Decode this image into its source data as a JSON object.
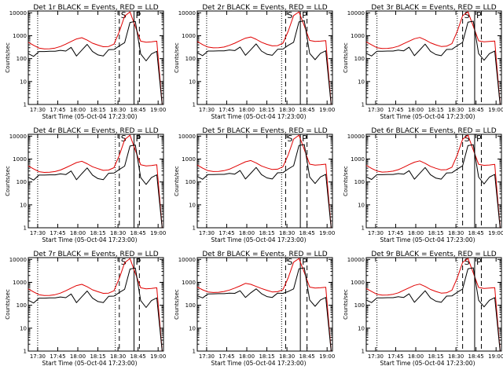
{
  "figure": {
    "x_tick_labels": [
      "17:30",
      "17:45",
      "18:00",
      "18:15",
      "18:30",
      "18:45",
      "19:00"
    ],
    "y_tick_labels": [
      "1",
      "10",
      "100",
      "1000",
      "10000"
    ],
    "xlabel": "Start Time (05-Oct-04 17:23:00)",
    "ylabel": "Counts/sec",
    "flag_labels": [
      "S",
      "P"
    ],
    "colors": {
      "events": "#000000",
      "lld": "#e00000",
      "axes": "#000000"
    }
  },
  "chart_data": [
    {
      "type": "line",
      "title": "Det 1r  BLACK = Events, RED = LLD",
      "xlabel": "Start Time (05-Oct-04 17:23:00)",
      "ylabel": "Counts/sec",
      "x_unit": "minutes after 17:23:00",
      "xlim": [
        0,
        101
      ],
      "ylim": [
        1,
        12000
      ],
      "y_scale": "log",
      "x": [
        0,
        4,
        8,
        12,
        16,
        20,
        24,
        28,
        32,
        36,
        40,
        44,
        48,
        52,
        56,
        60,
        64,
        68,
        72,
        76,
        80,
        84,
        88,
        92,
        96,
        100
      ],
      "series": [
        {
          "name": "LLD",
          "values": [
            520,
            380,
            290,
            265,
            270,
            290,
            340,
            430,
            560,
            720,
            820,
            640,
            470,
            390,
            330,
            340,
            430,
            1500,
            7200,
            11000,
            2500,
            580,
            520,
            540,
            580,
            0
          ],
          "style": "solid-red"
        },
        {
          "name": "Events",
          "values": [
            165,
            125,
            205,
            205,
            210,
            210,
            230,
            215,
            310,
            130,
            235,
            420,
            205,
            145,
            130,
            245,
            250,
            360,
            500,
            3800,
            4200,
            160,
            80,
            160,
            210,
            0
          ],
          "style": "solid-black"
        }
      ],
      "vertical_lines": {
        "dotted": [
          7,
          65
        ],
        "dashed": [
          68,
          83
        ],
        "solid": [
          79
        ]
      }
    },
    {
      "type": "line",
      "title": "Det 2r  BLACK = Events, RED = LLD",
      "xlabel": "Start Time (05-Oct-04 17:23:00)",
      "ylabel": "Counts/sec",
      "x_unit": "minutes after 17:23:00",
      "xlim": [
        0,
        101
      ],
      "ylim": [
        1,
        12000
      ],
      "y_scale": "log",
      "x": [
        0,
        4,
        8,
        12,
        16,
        20,
        24,
        28,
        32,
        36,
        40,
        44,
        48,
        52,
        56,
        60,
        64,
        68,
        72,
        76,
        80,
        84,
        88,
        92,
        96,
        100
      ],
      "series": [
        {
          "name": "LLD",
          "values": [
            560,
            410,
            320,
            295,
            300,
            320,
            380,
            470,
            610,
            780,
            880,
            700,
            520,
            420,
            360,
            370,
            470,
            1600,
            7600,
            11000,
            2700,
            620,
            560,
            580,
            610,
            0
          ],
          "style": "solid-red"
        },
        {
          "name": "Events",
          "values": [
            180,
            135,
            215,
            215,
            220,
            220,
            240,
            225,
            320,
            140,
            245,
            440,
            215,
            155,
            140,
            255,
            260,
            380,
            520,
            4000,
            4500,
            170,
            90,
            170,
            220,
            0
          ],
          "style": "solid-black"
        }
      ],
      "vertical_lines": {
        "dotted": [
          7,
          63
        ],
        "dashed": [
          66,
          82
        ],
        "solid": [
          77
        ]
      }
    },
    {
      "type": "line",
      "title": "Det 3r  BLACK = Events, RED = LLD",
      "xlabel": "Start Time (05-Oct-04 17:23:00)",
      "ylabel": "Counts/sec",
      "x_unit": "minutes after 17:23:00",
      "xlim": [
        0,
        101
      ],
      "ylim": [
        1,
        12000
      ],
      "y_scale": "log",
      "x": [
        0,
        4,
        8,
        12,
        16,
        20,
        24,
        28,
        32,
        36,
        40,
        44,
        48,
        52,
        56,
        60,
        64,
        68,
        72,
        76,
        80,
        84,
        88,
        92,
        96,
        100
      ],
      "series": [
        {
          "name": "LLD",
          "values": [
            540,
            400,
            300,
            275,
            280,
            300,
            350,
            450,
            580,
            740,
            840,
            660,
            490,
            400,
            340,
            350,
            450,
            1550,
            7400,
            11000,
            2600,
            600,
            540,
            560,
            590,
            0
          ],
          "style": "solid-red"
        },
        {
          "name": "Events",
          "values": [
            170,
            130,
            210,
            210,
            215,
            215,
            235,
            220,
            315,
            135,
            240,
            430,
            210,
            150,
            135,
            250,
            255,
            370,
            510,
            3900,
            4300,
            165,
            85,
            165,
            215,
            0
          ],
          "style": "solid-black"
        }
      ],
      "vertical_lines": {
        "dotted": [
          8,
          68
        ],
        "dashed": [
          72,
          86
        ],
        "solid": [
          81
        ]
      }
    },
    {
      "type": "line",
      "title": "Det 4r  BLACK = Events, RED = LLD",
      "xlabel": "Start Time (05-Oct-04 17:23:00)",
      "ylabel": "Counts/sec",
      "x_unit": "minutes after 17:23:00",
      "xlim": [
        0,
        101
      ],
      "ylim": [
        1,
        12000
      ],
      "y_scale": "log",
      "x": [
        0,
        4,
        8,
        12,
        16,
        20,
        24,
        28,
        32,
        36,
        40,
        44,
        48,
        52,
        56,
        60,
        64,
        68,
        72,
        76,
        80,
        84,
        88,
        92,
        96,
        100
      ],
      "series": [
        {
          "name": "LLD",
          "values": [
            500,
            370,
            280,
            260,
            265,
            285,
            330,
            420,
            540,
            700,
            800,
            620,
            460,
            380,
            320,
            330,
            420,
            1450,
            7000,
            11000,
            2400,
            560,
            500,
            520,
            560,
            0
          ],
          "style": "solid-red"
        },
        {
          "name": "Events",
          "values": [
            160,
            120,
            200,
            200,
            205,
            205,
            225,
            210,
            300,
            125,
            230,
            410,
            200,
            140,
            125,
            240,
            245,
            350,
            490,
            3700,
            4100,
            155,
            78,
            155,
            205,
            0
          ],
          "style": "solid-black"
        }
      ],
      "vertical_lines": {
        "dotted": [
          7,
          65
        ],
        "dashed": [
          68,
          83
        ],
        "solid": [
          79
        ]
      }
    },
    {
      "type": "line",
      "title": "Det 5r  BLACK = Events, RED = LLD",
      "xlabel": "Start Time (05-Oct-04 17:23:00)",
      "ylabel": "Counts/sec",
      "x_unit": "minutes after 17:23:00",
      "xlim": [
        0,
        101
      ],
      "ylim": [
        1,
        12000
      ],
      "y_scale": "log",
      "x": [
        0,
        4,
        8,
        12,
        16,
        20,
        24,
        28,
        32,
        36,
        40,
        44,
        48,
        52,
        56,
        60,
        64,
        68,
        72,
        76,
        80,
        84,
        88,
        92,
        96,
        100
      ],
      "series": [
        {
          "name": "LLD",
          "values": [
            550,
            400,
            310,
            285,
            290,
            310,
            360,
            460,
            590,
            760,
            860,
            680,
            500,
            410,
            350,
            360,
            460,
            1550,
            7400,
            11000,
            2600,
            600,
            540,
            560,
            600,
            0
          ],
          "style": "solid-red"
        },
        {
          "name": "Events",
          "values": [
            175,
            130,
            210,
            210,
            215,
            215,
            235,
            220,
            315,
            135,
            240,
            430,
            210,
            150,
            135,
            250,
            255,
            370,
            510,
            3900,
            4300,
            165,
            85,
            165,
            215,
            0
          ],
          "style": "solid-black"
        }
      ],
      "vertical_lines": {
        "dotted": [
          7,
          63
        ],
        "dashed": [
          66,
          82
        ],
        "solid": [
          77
        ]
      }
    },
    {
      "type": "line",
      "title": "Det 6r  BLACK = Events, RED = LLD",
      "xlabel": "Start Time (05-Oct-04 17:23:00)",
      "ylabel": "Counts/sec",
      "x_unit": "minutes after 17:23:00",
      "xlim": [
        0,
        101
      ],
      "ylim": [
        1,
        12000
      ],
      "y_scale": "log",
      "x": [
        0,
        4,
        8,
        12,
        16,
        20,
        24,
        28,
        32,
        36,
        40,
        44,
        48,
        52,
        56,
        60,
        64,
        68,
        72,
        76,
        80,
        84,
        88,
        92,
        96,
        100
      ],
      "series": [
        {
          "name": "LLD",
          "values": [
            530,
            390,
            300,
            270,
            275,
            295,
            345,
            440,
            570,
            730,
            830,
            650,
            480,
            395,
            335,
            345,
            440,
            1500,
            7300,
            11000,
            2500,
            590,
            530,
            550,
            585,
            0
          ],
          "style": "solid-red"
        },
        {
          "name": "Events",
          "values": [
            168,
            128,
            207,
            207,
            212,
            212,
            232,
            217,
            310,
            132,
            237,
            425,
            207,
            147,
            132,
            247,
            252,
            365,
            505,
            3850,
            4250,
            162,
            82,
            162,
            212,
            0
          ],
          "style": "solid-black"
        }
      ],
      "vertical_lines": {
        "dotted": [
          8,
          68
        ],
        "dashed": [
          72,
          86
        ],
        "solid": [
          81
        ]
      }
    },
    {
      "type": "line",
      "title": "Det 7r  BLACK = Events, RED = LLD",
      "xlabel": "Start Time (05-Oct-04 17:23:00)",
      "ylabel": "Counts/sec",
      "x_unit": "minutes after 17:23:00",
      "xlim": [
        0,
        101
      ],
      "ylim": [
        1,
        12000
      ],
      "y_scale": "log",
      "x": [
        0,
        4,
        8,
        12,
        16,
        20,
        24,
        28,
        32,
        36,
        40,
        44,
        48,
        52,
        56,
        60,
        64,
        68,
        72,
        76,
        80,
        84,
        88,
        92,
        96,
        100
      ],
      "series": [
        {
          "name": "LLD",
          "values": [
            520,
            380,
            290,
            265,
            270,
            290,
            340,
            430,
            560,
            720,
            820,
            640,
            470,
            390,
            330,
            340,
            430,
            1500,
            7200,
            11000,
            2500,
            580,
            520,
            540,
            580,
            0
          ],
          "style": "solid-red"
        },
        {
          "name": "Events",
          "values": [
            165,
            125,
            205,
            205,
            210,
            210,
            230,
            215,
            310,
            130,
            235,
            420,
            205,
            145,
            130,
            245,
            250,
            360,
            500,
            3800,
            4200,
            160,
            80,
            160,
            210,
            0
          ],
          "style": "solid-black"
        }
      ],
      "vertical_lines": {
        "dotted": [
          7,
          65
        ],
        "dashed": [
          68,
          83
        ],
        "solid": [
          79
        ]
      }
    },
    {
      "type": "line",
      "title": "Det 8r  BLACK = Events, RED = LLD",
      "xlabel": "Start Time (05-Oct-04 17:23:00)",
      "ylabel": "Counts/sec",
      "x_unit": "minutes after 17:23:00",
      "xlim": [
        0,
        101
      ],
      "ylim": [
        1,
        12000
      ],
      "y_scale": "log",
      "x": [
        0,
        4,
        8,
        12,
        16,
        20,
        24,
        28,
        32,
        36,
        40,
        44,
        48,
        52,
        56,
        60,
        64,
        68,
        72,
        76,
        80,
        84,
        88,
        92,
        96,
        100
      ],
      "series": [
        {
          "name": "LLD",
          "values": [
            620,
            470,
            380,
            360,
            370,
            400,
            460,
            560,
            700,
            900,
            820,
            660,
            540,
            450,
            380,
            390,
            480,
            1600,
            7600,
            11000,
            2700,
            620,
            560,
            580,
            610,
            0
          ],
          "style": "solid-red"
        },
        {
          "name": "Events",
          "values": [
            260,
            210,
            310,
            315,
            320,
            320,
            340,
            330,
            430,
            220,
            350,
            520,
            320,
            240,
            220,
            340,
            330,
            400,
            520,
            3900,
            4300,
            170,
            90,
            170,
            220,
            0
          ],
          "style": "solid-black"
        }
      ],
      "vertical_lines": {
        "dotted": [
          7,
          63
        ],
        "dashed": [
          66,
          82
        ],
        "solid": [
          77
        ]
      }
    },
    {
      "type": "line",
      "title": "Det 9r  BLACK = Events, RED = LLD",
      "xlabel": "Start Time (05-Oct-04 17:23:00)",
      "ylabel": "Counts/sec",
      "x_unit": "minutes after 17:23:00",
      "xlim": [
        0,
        101
      ],
      "ylim": [
        1,
        12000
      ],
      "y_scale": "log",
      "x": [
        0,
        4,
        8,
        12,
        16,
        20,
        24,
        28,
        32,
        36,
        40,
        44,
        48,
        52,
        56,
        60,
        64,
        68,
        72,
        76,
        80,
        84,
        88,
        92,
        96,
        100
      ],
      "series": [
        {
          "name": "LLD",
          "values": [
            540,
            400,
            300,
            275,
            280,
            300,
            350,
            450,
            580,
            740,
            840,
            660,
            490,
            400,
            340,
            350,
            450,
            1550,
            7400,
            11000,
            2600,
            600,
            540,
            560,
            590,
            0
          ],
          "style": "solid-red"
        },
        {
          "name": "Events",
          "values": [
            170,
            130,
            210,
            210,
            215,
            215,
            235,
            220,
            315,
            135,
            240,
            430,
            210,
            150,
            135,
            250,
            255,
            370,
            510,
            3900,
            4300,
            165,
            85,
            165,
            215,
            0
          ],
          "style": "solid-black"
        }
      ],
      "vertical_lines": {
        "dotted": [
          8,
          68
        ],
        "dashed": [
          72,
          86
        ],
        "solid": [
          81
        ]
      }
    }
  ]
}
